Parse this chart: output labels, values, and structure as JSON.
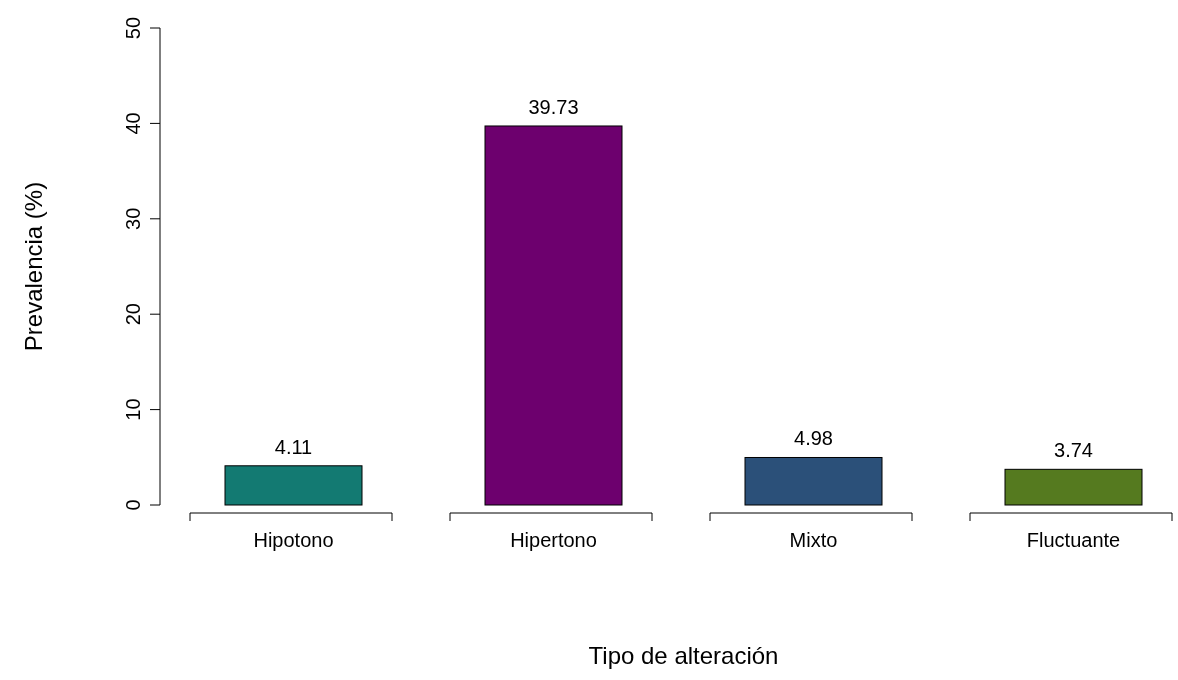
{
  "chart_data": {
    "type": "bar",
    "xlabel": "Tipo de alteración",
    "ylabel": "Prevalencia (%)",
    "categories": [
      "Hipotono",
      "Hipertono",
      "Mixto",
      "Fluctuante"
    ],
    "values": [
      4.11,
      39.73,
      4.98,
      3.74
    ],
    "colors": [
      "#137a72",
      "#6d006e",
      "#2b5079",
      "#557a1f"
    ],
    "data_labels": true,
    "ylim": [
      0,
      50
    ],
    "yticks": [
      0,
      10,
      20,
      30,
      40,
      50
    ]
  }
}
